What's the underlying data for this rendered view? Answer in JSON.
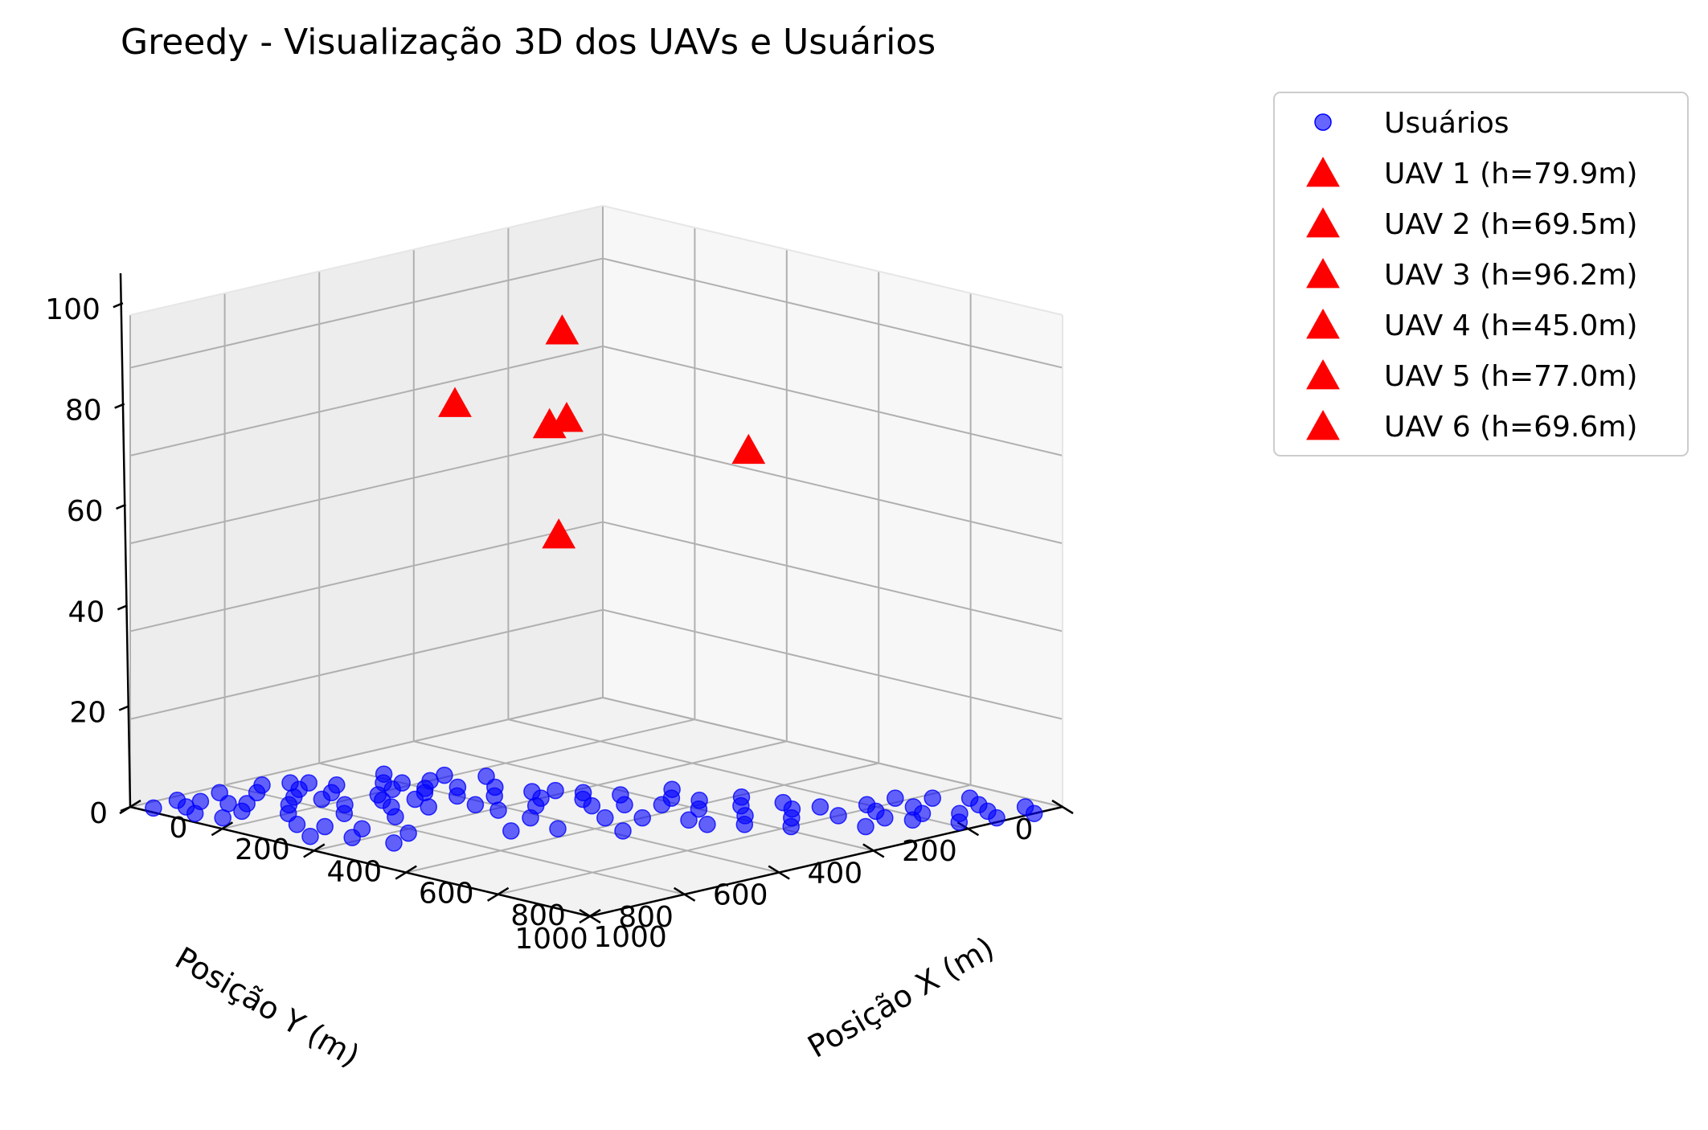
{
  "chart_data": {
    "type": "scatter",
    "title": "Greedy - Visualização 3D dos UAVs e Usuários",
    "xlabel": "Posição X (m)",
    "ylabel": "Posição Y (m)",
    "zlabel": "",
    "xlim": [
      0,
      1000
    ],
    "ylim": [
      0,
      1000
    ],
    "zlim": [
      0,
      112
    ],
    "x_ticks": [
      0,
      200,
      400,
      600,
      800,
      1000
    ],
    "y_ticks": [
      0,
      200,
      400,
      600,
      800,
      1000
    ],
    "z_ticks": [
      0,
      20,
      40,
      60,
      80,
      100
    ],
    "grid": true,
    "legend_position": "outside-right",
    "colors": {
      "users": "#1f1ff2",
      "uav": "#ff0000"
    },
    "series": [
      {
        "name": "Usuários",
        "marker": "circle",
        "color": "#0000ff",
        "points": [
          [
            60,
            720,
            0
          ],
          [
            80,
            700,
            0
          ],
          [
            100,
            740,
            0
          ],
          [
            40,
            760,
            0
          ],
          [
            120,
            680,
            0
          ],
          [
            150,
            720,
            0
          ],
          [
            70,
            800,
            0
          ],
          [
            30,
            840,
            0
          ],
          [
            110,
            860,
            0
          ],
          [
            50,
            900,
            0
          ],
          [
            130,
            780,
            0
          ],
          [
            160,
            820,
            0
          ],
          [
            90,
            880,
            0
          ],
          [
            140,
            900,
            0
          ],
          [
            20,
            920,
            0
          ],
          [
            170,
            760,
            0
          ],
          [
            60,
            940,
            0
          ],
          [
            100,
            960,
            0
          ],
          [
            30,
            980,
            0
          ],
          [
            150,
            950,
            0
          ],
          [
            180,
            600,
            0
          ],
          [
            200,
            640,
            0
          ],
          [
            230,
            600,
            0
          ],
          [
            210,
            680,
            0
          ],
          [
            250,
            620,
            0
          ],
          [
            270,
            660,
            0
          ],
          [
            240,
            700,
            0
          ],
          [
            200,
            560,
            0
          ],
          [
            260,
            560,
            0
          ],
          [
            300,
            600,
            0
          ],
          [
            220,
            760,
            0
          ],
          [
            280,
            720,
            0
          ],
          [
            320,
            680,
            0
          ],
          [
            190,
            520,
            0
          ],
          [
            300,
            520,
            0
          ],
          [
            340,
            560,
            0
          ],
          [
            260,
            800,
            0
          ],
          [
            330,
            760,
            0
          ],
          [
            360,
            620,
            0
          ],
          [
            240,
            480,
            0
          ],
          [
            380,
            470,
            0
          ],
          [
            400,
            520,
            0
          ],
          [
            420,
            450,
            0
          ],
          [
            360,
            500,
            0
          ],
          [
            450,
            480,
            0
          ],
          [
            470,
            420,
            0
          ],
          [
            430,
            560,
            0
          ],
          [
            490,
            500,
            0
          ],
          [
            410,
            620,
            0
          ],
          [
            520,
            460,
            0
          ],
          [
            540,
            380,
            0
          ],
          [
            500,
            340,
            0
          ],
          [
            560,
            420,
            0
          ],
          [
            580,
            360,
            0
          ],
          [
            610,
            300,
            0
          ],
          [
            620,
            400,
            0
          ],
          [
            650,
            340,
            0
          ],
          [
            680,
            280,
            0
          ],
          [
            700,
            380,
            0
          ],
          [
            720,
            300,
            0
          ],
          [
            760,
            340,
            0
          ],
          [
            740,
            260,
            0
          ],
          [
            800,
            280,
            0
          ],
          [
            820,
            220,
            0
          ],
          [
            780,
            200,
            0
          ],
          [
            860,
            240,
            0
          ],
          [
            880,
            180,
            0
          ],
          [
            840,
            160,
            0
          ],
          [
            900,
            220,
            0
          ],
          [
            920,
            140,
            0
          ],
          [
            960,
            180,
            0
          ],
          [
            940,
            100,
            0
          ],
          [
            980,
            120,
            0
          ],
          [
            900,
            80,
            0
          ],
          [
            960,
            40,
            0
          ],
          [
            1000,
            60,
            0
          ],
          [
            860,
            60,
            0
          ],
          [
            820,
            100,
            0
          ],
          [
            780,
            140,
            0
          ],
          [
            880,
            300,
            0
          ],
          [
            660,
            460,
            0
          ],
          [
            600,
            500,
            0
          ],
          [
            700,
            460,
            0
          ],
          [
            560,
            540,
            0
          ],
          [
            640,
            580,
            0
          ],
          [
            480,
            620,
            0
          ],
          [
            520,
            700,
            0
          ],
          [
            560,
            640,
            0
          ],
          [
            740,
            420,
            0
          ],
          [
            800,
            380,
            0
          ],
          [
            350,
            850,
            0
          ],
          [
            300,
            880,
            0
          ],
          [
            420,
            820,
            0
          ],
          [
            200,
            860,
            0
          ],
          [
            260,
            900,
            0
          ],
          [
            380,
            900,
            0
          ],
          [
            330,
            940,
            0
          ],
          [
            450,
            880,
            0
          ],
          [
            160,
            620,
            0
          ],
          [
            120,
            580,
            0
          ]
        ]
      },
      {
        "name": "UAV 1 (h=79.9m)",
        "marker": "triangle",
        "color": "#ff0000",
        "points": [
          [
            110,
            420,
            79.9
          ]
        ]
      },
      {
        "name": "UAV 2 (h=69.5m)",
        "marker": "triangle",
        "color": "#ff0000",
        "points": [
          [
            430,
            110,
            69.5
          ]
        ]
      },
      {
        "name": "UAV 3 (h=96.2m)",
        "marker": "triangle",
        "color": "#ff0000",
        "points": [
          [
            220,
            300,
            96.2
          ]
        ]
      },
      {
        "name": "UAV 4 (h=45.0m)",
        "marker": "triangle",
        "color": "#ff0000",
        "points": [
          [
            120,
            210,
            45.0
          ]
        ]
      },
      {
        "name": "UAV 5 (h=77.0m)",
        "marker": "triangle",
        "color": "#ff0000",
        "points": [
          [
            240,
            310,
            77.0
          ]
        ]
      },
      {
        "name": "UAV 6 (h=69.6m)",
        "marker": "triangle",
        "color": "#ff0000",
        "points": [
          [
            100,
            210,
            69.6
          ]
        ]
      }
    ]
  }
}
